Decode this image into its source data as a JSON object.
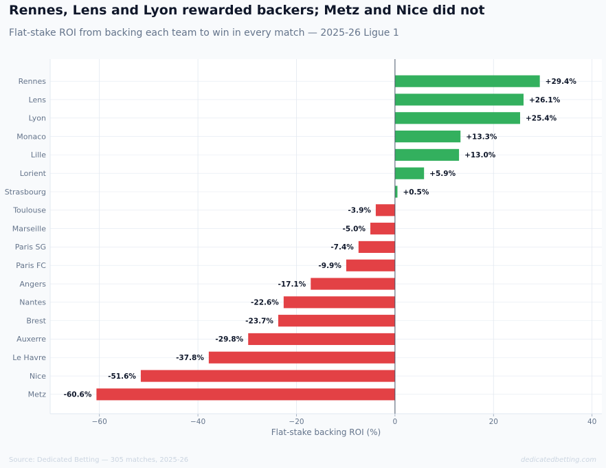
{
  "title": "Rennes, Lens and Lyon rewarded backers; Metz and Nice did not",
  "subtitle": "Flat-stake ROI from backing each team to win in every match — 2025-26 Ligue 1",
  "footer": {
    "source": "Source: Dedicated Betting — 305 matches, 2025-26",
    "site": "dedicatedbetting.com"
  },
  "colors": {
    "positive": "#33b05e",
    "negative": "#e34145",
    "grid": "#e2e8f0",
    "zero_line": "#475569",
    "tick_text": "#64748b",
    "label_text": "#0f172a"
  },
  "chart_data": {
    "type": "bar",
    "orientation": "horizontal",
    "categories": [
      "Rennes",
      "Lens",
      "Lyon",
      "Monaco",
      "Lille",
      "Lorient",
      "Strasbourg",
      "Toulouse",
      "Marseille",
      "Paris SG",
      "Paris FC",
      "Angers",
      "Nantes",
      "Brest",
      "Auxerre",
      "Le Havre",
      "Nice",
      "Metz"
    ],
    "values": [
      29.4,
      26.1,
      25.4,
      13.3,
      13.0,
      5.9,
      0.5,
      -3.9,
      -5.0,
      -7.4,
      -9.9,
      -17.1,
      -22.6,
      -23.7,
      -29.8,
      -37.8,
      -51.6,
      -60.6
    ],
    "value_labels": [
      "+29.4%",
      "+26.1%",
      "+25.4%",
      "+13.3%",
      "+13.0%",
      "+5.9%",
      "+0.5%",
      "-3.9%",
      "-5.0%",
      "-7.4%",
      "-9.9%",
      "-17.1%",
      "-22.6%",
      "-23.7%",
      "-29.8%",
      "-37.8%",
      "-51.6%",
      "-60.6%"
    ],
    "xlabel": "Flat-stake backing ROI (%)",
    "xlim": [
      -70,
      42
    ],
    "xticks": [
      -60,
      -40,
      -20,
      0,
      20,
      40
    ],
    "xtick_labels": [
      "−60",
      "−40",
      "−20",
      "0",
      "20",
      "40"
    ],
    "grid": true
  }
}
